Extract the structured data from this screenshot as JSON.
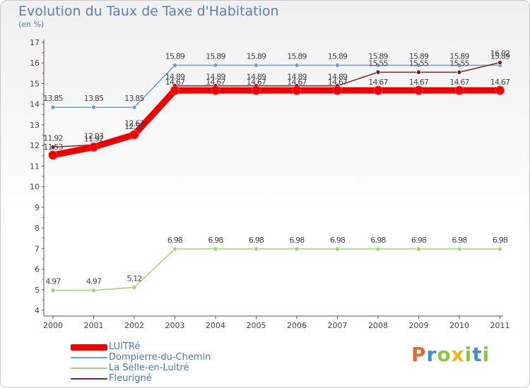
{
  "header": {
    "title": "Evolution du Taux de Taxe d'Habitation",
    "unit": "(en %)"
  },
  "logo": {
    "text": "Proxiti"
  },
  "chart_data": {
    "type": "line",
    "title": "Evolution du Taux de Taxe d'Habitation",
    "ylabel": "(en %)",
    "xlabel": "",
    "x": [
      "2000",
      "2001",
      "2002",
      "2003",
      "2004",
      "2005",
      "2006",
      "2007",
      "2008",
      "2009",
      "2010",
      "2011"
    ],
    "ylim": [
      4,
      17
    ],
    "yticks": [
      "4",
      "5",
      "6",
      "7",
      "8",
      "9",
      "10",
      "11",
      "12",
      "13",
      "14",
      "15",
      "16",
      "17"
    ],
    "grid": false,
    "legend_position": "bottom-left",
    "series": [
      {
        "name": "LUITRé",
        "color": "#ee0000",
        "values": [
          11.53,
          11.92,
          12.52,
          14.67,
          14.67,
          14.67,
          14.67,
          14.67,
          14.67,
          14.67,
          14.67,
          14.67
        ],
        "labels": [
          "11.53",
          "11.92",
          "12.52",
          "14.67",
          "14.67",
          "14.67",
          "14.67",
          "14.67",
          "14.67",
          "14.67",
          "14.67",
          "14.67"
        ]
      },
      {
        "name": "Dompierre-du-Chemin",
        "color": "#6f9fd0",
        "values": [
          13.85,
          13.85,
          13.85,
          15.89,
          15.89,
          15.89,
          15.89,
          15.89,
          15.89,
          15.89,
          15.89,
          15.89
        ],
        "labels": [
          "13.85",
          "13.85",
          "13.85",
          "15.89",
          "15.89",
          "15.89",
          "15.89",
          "15.89",
          "15.89",
          "15.89",
          "15.89",
          "15.89"
        ]
      },
      {
        "name": "La Selle-en-Luitré",
        "color": "#9fd86a",
        "values": [
          4.97,
          4.97,
          5.12,
          6.98,
          6.98,
          6.98,
          6.98,
          6.98,
          6.98,
          6.98,
          6.98,
          6.98
        ],
        "labels": [
          "4.97",
          "4.97",
          "5.12",
          "6.98",
          "6.98",
          "6.98",
          "6.98",
          "6.98",
          "6.98",
          "6.98",
          "6.98",
          "6.98"
        ]
      },
      {
        "name": "Fleurigné",
        "color": "#7a2430",
        "values": [
          11.92,
          12.03,
          12.63,
          14.89,
          14.89,
          14.89,
          14.89,
          14.89,
          15.55,
          15.55,
          15.55,
          16.02
        ],
        "labels": [
          "11.92",
          "12.03",
          "12.63",
          "14.89",
          "14.89",
          "14.89",
          "14.89",
          "14.89",
          "15.55",
          "15.55",
          "15.55",
          "16.02"
        ]
      }
    ]
  }
}
